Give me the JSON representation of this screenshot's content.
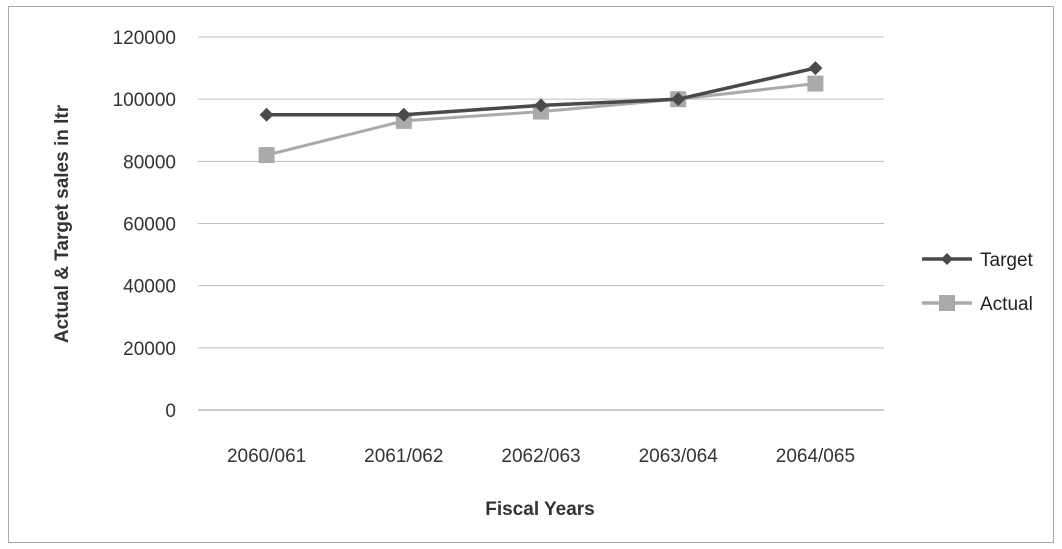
{
  "chart_data": {
    "type": "line",
    "title": "",
    "xlabel": "Fiscal Years",
    "ylabel": "Actual & Target sales in ltr",
    "categories": [
      "2060/061",
      "2061/062",
      "2062/063",
      "2063/064",
      "2064/065"
    ],
    "ylim": [
      0,
      120000
    ],
    "yticks": [
      0,
      20000,
      40000,
      60000,
      80000,
      100000,
      120000
    ],
    "grid": true,
    "legend_position": "right",
    "series": [
      {
        "name": "Target",
        "values": [
          95000,
          95000,
          98000,
          100000,
          110000
        ],
        "color": "#4a4a4a",
        "marker": "diamond"
      },
      {
        "name": "Actual",
        "values": [
          82000,
          93000,
          96000,
          100000,
          105000
        ],
        "color": "#aaaaaa",
        "marker": "square"
      }
    ]
  }
}
